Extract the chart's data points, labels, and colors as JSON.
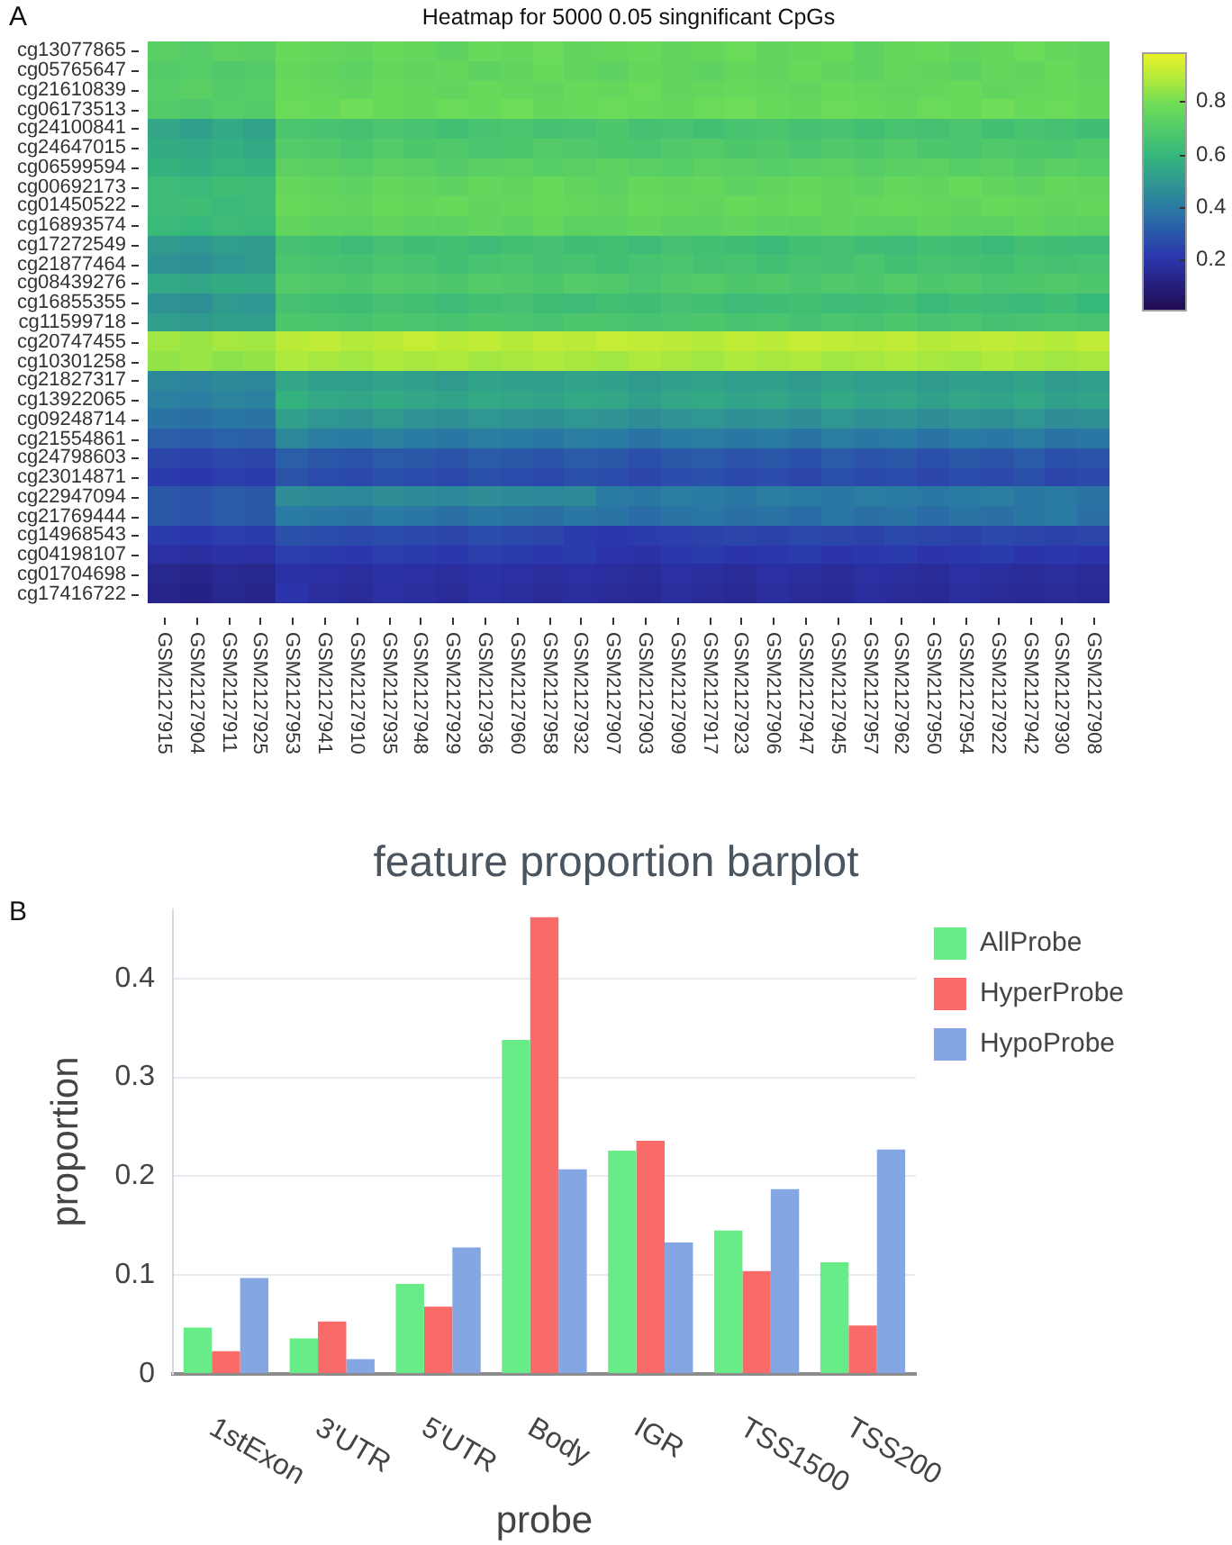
{
  "chart_data": [
    {
      "type": "heatmap",
      "title": "Heatmap for 5000 0.05 singnificant CpGs",
      "annotations": [
        "A"
      ],
      "categories": [
        "GSM2127915",
        "GSM2127904",
        "GSM2127911",
        "GSM2127925",
        "GSM2127953",
        "GSM2127941",
        "GSM2127910",
        "GSM2127935",
        "GSM2127948",
        "GSM2127929",
        "GSM2127936",
        "GSM2127960",
        "GSM2127958",
        "GSM2127932",
        "GSM2127907",
        "GSM2127903",
        "GSM2127909",
        "GSM2127917",
        "GSM2127923",
        "GSM2127906",
        "GSM2127947",
        "GSM2127945",
        "GSM2127957",
        "GSM2127962",
        "GSM2127950",
        "GSM2127954",
        "GSM2127922",
        "GSM2127942",
        "GSM2127930",
        "GSM2127908"
      ],
      "y_categories": [
        "cg13077865",
        "cg05765647",
        "cg21610839",
        "cg06173513",
        "cg24100841",
        "cg24647015",
        "cg06599594",
        "cg00692173",
        "cg01450522",
        "cg16893574",
        "cg17272549",
        "cg21877464",
        "cg08439276",
        "cg16855355",
        "cg11599718",
        "cg20747455",
        "cg10301258",
        "cg21827317",
        "cg13922065",
        "cg09248714",
        "cg21554861",
        "cg24798603",
        "cg23014871",
        "cg22947094",
        "cg21769444",
        "cg14968543",
        "cg04198107",
        "cg01704698",
        "cg17416722"
      ],
      "cells": [
        [
          0.72,
          0.71,
          0.73,
          0.72,
          0.77,
          0.76,
          0.75,
          0.77,
          0.76,
          0.74,
          0.77,
          0.76,
          0.78,
          0.75,
          0.76,
          0.77,
          0.75,
          0.76,
          0.78,
          0.75,
          0.76,
          0.77,
          0.74,
          0.76,
          0.77,
          0.75,
          0.76,
          0.78,
          0.76,
          0.75
        ],
        [
          0.7,
          0.71,
          0.69,
          0.7,
          0.76,
          0.75,
          0.74,
          0.76,
          0.75,
          0.76,
          0.74,
          0.75,
          0.77,
          0.75,
          0.74,
          0.76,
          0.75,
          0.74,
          0.76,
          0.75,
          0.77,
          0.75,
          0.74,
          0.76,
          0.75,
          0.74,
          0.76,
          0.75,
          0.77,
          0.75
        ],
        [
          0.71,
          0.72,
          0.7,
          0.71,
          0.77,
          0.76,
          0.75,
          0.77,
          0.76,
          0.75,
          0.77,
          0.76,
          0.75,
          0.77,
          0.76,
          0.78,
          0.75,
          0.76,
          0.77,
          0.76,
          0.75,
          0.77,
          0.76,
          0.75,
          0.76,
          0.77,
          0.75,
          0.76,
          0.77,
          0.76
        ],
        [
          0.7,
          0.69,
          0.71,
          0.7,
          0.78,
          0.77,
          0.79,
          0.77,
          0.76,
          0.78,
          0.77,
          0.79,
          0.76,
          0.77,
          0.78,
          0.77,
          0.76,
          0.78,
          0.79,
          0.77,
          0.76,
          0.78,
          0.77,
          0.76,
          0.78,
          0.77,
          0.79,
          0.77,
          0.78,
          0.76
        ],
        [
          0.54,
          0.52,
          0.55,
          0.53,
          0.67,
          0.66,
          0.65,
          0.67,
          0.66,
          0.64,
          0.66,
          0.67,
          0.65,
          0.66,
          0.68,
          0.65,
          0.66,
          0.64,
          0.66,
          0.67,
          0.65,
          0.66,
          0.64,
          0.66,
          0.65,
          0.67,
          0.64,
          0.66,
          0.65,
          0.63
        ],
        [
          0.56,
          0.55,
          0.57,
          0.55,
          0.7,
          0.69,
          0.67,
          0.7,
          0.68,
          0.69,
          0.67,
          0.68,
          0.7,
          0.69,
          0.68,
          0.67,
          0.69,
          0.7,
          0.68,
          0.69,
          0.67,
          0.69,
          0.68,
          0.7,
          0.68,
          0.67,
          0.69,
          0.68,
          0.67,
          0.69
        ],
        [
          0.58,
          0.57,
          0.59,
          0.58,
          0.73,
          0.72,
          0.71,
          0.73,
          0.72,
          0.7,
          0.72,
          0.73,
          0.71,
          0.72,
          0.74,
          0.72,
          0.71,
          0.73,
          0.72,
          0.71,
          0.72,
          0.73,
          0.71,
          0.72,
          0.73,
          0.71,
          0.72,
          0.7,
          0.72,
          0.71
        ],
        [
          0.62,
          0.61,
          0.63,
          0.62,
          0.76,
          0.75,
          0.74,
          0.76,
          0.75,
          0.74,
          0.76,
          0.75,
          0.77,
          0.75,
          0.74,
          0.76,
          0.75,
          0.76,
          0.74,
          0.75,
          0.76,
          0.75,
          0.74,
          0.76,
          0.75,
          0.77,
          0.75,
          0.74,
          0.76,
          0.75
        ],
        [
          0.62,
          0.63,
          0.61,
          0.62,
          0.77,
          0.76,
          0.75,
          0.77,
          0.76,
          0.77,
          0.75,
          0.76,
          0.77,
          0.76,
          0.75,
          0.77,
          0.76,
          0.75,
          0.77,
          0.76,
          0.77,
          0.75,
          0.76,
          0.77,
          0.76,
          0.75,
          0.77,
          0.76,
          0.75,
          0.76
        ],
        [
          0.61,
          0.6,
          0.62,
          0.61,
          0.75,
          0.74,
          0.73,
          0.75,
          0.74,
          0.73,
          0.75,
          0.74,
          0.76,
          0.73,
          0.74,
          0.75,
          0.73,
          0.74,
          0.75,
          0.74,
          0.73,
          0.75,
          0.74,
          0.73,
          0.75,
          0.74,
          0.73,
          0.75,
          0.74,
          0.73
        ],
        [
          0.5,
          0.49,
          0.51,
          0.5,
          0.65,
          0.64,
          0.62,
          0.65,
          0.63,
          0.64,
          0.62,
          0.64,
          0.65,
          0.63,
          0.64,
          0.62,
          0.65,
          0.64,
          0.63,
          0.61,
          0.64,
          0.65,
          0.63,
          0.62,
          0.64,
          0.63,
          0.61,
          0.64,
          0.63,
          0.62
        ],
        [
          0.48,
          0.47,
          0.49,
          0.5,
          0.67,
          0.66,
          0.65,
          0.67,
          0.66,
          0.64,
          0.66,
          0.67,
          0.65,
          0.66,
          0.64,
          0.66,
          0.67,
          0.65,
          0.66,
          0.64,
          0.66,
          0.65,
          0.67,
          0.64,
          0.66,
          0.65,
          0.64,
          0.66,
          0.65,
          0.66
        ],
        [
          0.55,
          0.54,
          0.56,
          0.55,
          0.7,
          0.69,
          0.68,
          0.7,
          0.69,
          0.68,
          0.7,
          0.69,
          0.68,
          0.7,
          0.69,
          0.67,
          0.69,
          0.7,
          0.68,
          0.69,
          0.67,
          0.69,
          0.68,
          0.7,
          0.68,
          0.69,
          0.67,
          0.68,
          0.69,
          0.68
        ],
        [
          0.48,
          0.47,
          0.5,
          0.49,
          0.65,
          0.64,
          0.63,
          0.65,
          0.64,
          0.62,
          0.64,
          0.65,
          0.63,
          0.62,
          0.64,
          0.63,
          0.65,
          0.64,
          0.62,
          0.63,
          0.64,
          0.62,
          0.63,
          0.64,
          0.61,
          0.63,
          0.62,
          0.61,
          0.63,
          0.6
        ],
        [
          0.51,
          0.5,
          0.52,
          0.51,
          0.68,
          0.67,
          0.66,
          0.68,
          0.67,
          0.66,
          0.68,
          0.67,
          0.66,
          0.68,
          0.67,
          0.66,
          0.67,
          0.68,
          0.66,
          0.67,
          0.65,
          0.67,
          0.66,
          0.68,
          0.66,
          0.67,
          0.65,
          0.66,
          0.67,
          0.66
        ],
        [
          0.86,
          0.85,
          0.87,
          0.86,
          0.9,
          0.91,
          0.89,
          0.9,
          0.92,
          0.9,
          0.91,
          0.89,
          0.91,
          0.9,
          0.92,
          0.91,
          0.9,
          0.89,
          0.91,
          0.9,
          0.92,
          0.91,
          0.9,
          0.91,
          0.89,
          0.9,
          0.91,
          0.9,
          0.89,
          0.91
        ],
        [
          0.84,
          0.85,
          0.83,
          0.84,
          0.88,
          0.87,
          0.86,
          0.88,
          0.87,
          0.88,
          0.86,
          0.87,
          0.88,
          0.87,
          0.86,
          0.88,
          0.87,
          0.86,
          0.88,
          0.87,
          0.88,
          0.86,
          0.87,
          0.88,
          0.87,
          0.86,
          0.88,
          0.87,
          0.86,
          0.87
        ],
        [
          0.44,
          0.43,
          0.45,
          0.44,
          0.54,
          0.52,
          0.51,
          0.53,
          0.52,
          0.5,
          0.53,
          0.52,
          0.51,
          0.53,
          0.52,
          0.5,
          0.52,
          0.53,
          0.51,
          0.52,
          0.5,
          0.53,
          0.51,
          0.52,
          0.5,
          0.52,
          0.51,
          0.53,
          0.5,
          0.51
        ],
        [
          0.42,
          0.41,
          0.43,
          0.42,
          0.58,
          0.55,
          0.54,
          0.56,
          0.54,
          0.53,
          0.55,
          0.54,
          0.53,
          0.55,
          0.54,
          0.52,
          0.54,
          0.55,
          0.53,
          0.54,
          0.52,
          0.55,
          0.53,
          0.54,
          0.52,
          0.54,
          0.53,
          0.55,
          0.52,
          0.53
        ],
        [
          0.38,
          0.37,
          0.39,
          0.38,
          0.52,
          0.49,
          0.48,
          0.5,
          0.48,
          0.47,
          0.49,
          0.48,
          0.47,
          0.49,
          0.48,
          0.46,
          0.48,
          0.49,
          0.47,
          0.48,
          0.46,
          0.49,
          0.47,
          0.48,
          0.46,
          0.48,
          0.47,
          0.49,
          0.46,
          0.47
        ],
        [
          0.32,
          0.31,
          0.33,
          0.32,
          0.44,
          0.41,
          0.4,
          0.42,
          0.4,
          0.39,
          0.41,
          0.4,
          0.39,
          0.41,
          0.4,
          0.38,
          0.4,
          0.41,
          0.39,
          0.4,
          0.38,
          0.41,
          0.39,
          0.4,
          0.38,
          0.4,
          0.39,
          0.41,
          0.38,
          0.39
        ],
        [
          0.25,
          0.24,
          0.26,
          0.25,
          0.32,
          0.3,
          0.29,
          0.31,
          0.3,
          0.29,
          0.31,
          0.3,
          0.29,
          0.31,
          0.3,
          0.28,
          0.3,
          0.31,
          0.29,
          0.3,
          0.28,
          0.31,
          0.29,
          0.3,
          0.28,
          0.3,
          0.29,
          0.31,
          0.28,
          0.29
        ],
        [
          0.22,
          0.21,
          0.23,
          0.22,
          0.29,
          0.27,
          0.26,
          0.28,
          0.27,
          0.26,
          0.28,
          0.27,
          0.26,
          0.28,
          0.27,
          0.25,
          0.27,
          0.28,
          0.26,
          0.27,
          0.25,
          0.28,
          0.26,
          0.27,
          0.25,
          0.27,
          0.26,
          0.28,
          0.25,
          0.26
        ],
        [
          0.3,
          0.29,
          0.31,
          0.3,
          0.46,
          0.45,
          0.44,
          0.46,
          0.45,
          0.44,
          0.46,
          0.45,
          0.44,
          0.45,
          0.4,
          0.39,
          0.41,
          0.4,
          0.39,
          0.41,
          0.4,
          0.39,
          0.41,
          0.4,
          0.39,
          0.4,
          0.41,
          0.39,
          0.4,
          0.38
        ],
        [
          0.3,
          0.29,
          0.31,
          0.3,
          0.4,
          0.39,
          0.38,
          0.4,
          0.39,
          0.37,
          0.39,
          0.38,
          0.37,
          0.39,
          0.38,
          0.36,
          0.38,
          0.39,
          0.37,
          0.38,
          0.36,
          0.39,
          0.37,
          0.38,
          0.36,
          0.38,
          0.37,
          0.39,
          0.4,
          0.37
        ],
        [
          0.22,
          0.21,
          0.23,
          0.22,
          0.28,
          0.27,
          0.26,
          0.27,
          0.26,
          0.25,
          0.27,
          0.26,
          0.25,
          0.22,
          0.21,
          0.22,
          0.23,
          0.24,
          0.25,
          0.24,
          0.26,
          0.25,
          0.24,
          0.26,
          0.25,
          0.24,
          0.26,
          0.25,
          0.24,
          0.25
        ],
        [
          0.18,
          0.17,
          0.19,
          0.18,
          0.23,
          0.22,
          0.21,
          0.23,
          0.22,
          0.21,
          0.23,
          0.22,
          0.21,
          0.22,
          0.2,
          0.19,
          0.21,
          0.22,
          0.2,
          0.21,
          0.22,
          0.2,
          0.21,
          0.22,
          0.2,
          0.21,
          0.22,
          0.2,
          0.21,
          0.2
        ],
        [
          0.14,
          0.13,
          0.15,
          0.14,
          0.19,
          0.18,
          0.17,
          0.19,
          0.18,
          0.17,
          0.19,
          0.18,
          0.17,
          0.18,
          0.17,
          0.16,
          0.18,
          0.17,
          0.16,
          0.18,
          0.17,
          0.16,
          0.18,
          0.17,
          0.16,
          0.18,
          0.17,
          0.16,
          0.17,
          0.16
        ],
        [
          0.13,
          0.12,
          0.14,
          0.13,
          0.2,
          0.17,
          0.16,
          0.18,
          0.17,
          0.16,
          0.18,
          0.17,
          0.16,
          0.17,
          0.16,
          0.15,
          0.17,
          0.16,
          0.15,
          0.17,
          0.16,
          0.15,
          0.17,
          0.16,
          0.15,
          0.17,
          0.16,
          0.15,
          0.16,
          0.15
        ]
      ],
      "clim": [
        0.01,
        0.98
      ],
      "cticks": [
        0.2,
        0.4,
        0.6,
        0.8
      ]
    },
    {
      "type": "bar",
      "title": "feature proportion barplot",
      "annotations": [
        "B"
      ],
      "xlabel": "probe",
      "ylabel": "proportion",
      "categories": [
        "1stExon",
        "3'UTR",
        "5'UTR",
        "Body",
        "IGR",
        "TSS1500",
        "TSS200"
      ],
      "series": [
        {
          "name": "AllProbe",
          "color": "#68ec88",
          "values": [
            0.047,
            0.036,
            0.091,
            0.338,
            0.226,
            0.145,
            0.113
          ]
        },
        {
          "name": "HyperProbe",
          "color": "#f86b68",
          "values": [
            0.023,
            0.053,
            0.068,
            0.462,
            0.236,
            0.104,
            0.049
          ]
        },
        {
          "name": "HypoProbe",
          "color": "#84a6e3",
          "values": [
            0.097,
            0.015,
            0.128,
            0.207,
            0.133,
            0.187,
            0.227
          ]
        }
      ],
      "ylim": [
        0,
        0.47
      ],
      "yticks": [
        0,
        0.1,
        0.2,
        0.3,
        0.4
      ],
      "grid": "y",
      "legend": "top right"
    }
  ]
}
